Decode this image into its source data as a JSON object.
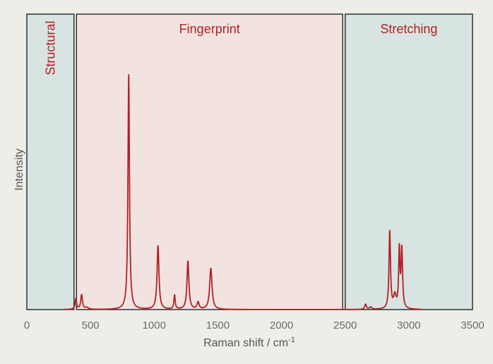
{
  "chart_data": {
    "type": "line",
    "xlabel": "Raman shift / cm",
    "xlabel_superscript": "-1",
    "ylabel": "Intensity",
    "xlim": [
      0,
      3500
    ],
    "ylim": [
      0,
      1.0
    ],
    "x_ticks": [
      0,
      500,
      1000,
      1500,
      2000,
      2500,
      3000,
      3500
    ],
    "y_ticks_shown": false,
    "grid": false,
    "colors": {
      "line": "#b41f24",
      "label": "#b41f24",
      "structural_fill": "#d8e4e1",
      "fingerprint_fill": "#f2e3e0",
      "stretching_fill": "#d8e4e1",
      "frame": "#1a2a2a",
      "background": "#efede8"
    },
    "regions": [
      {
        "label": "Structural",
        "x_start": 0,
        "x_end": 370,
        "label_orientation": "vertical"
      },
      {
        "label": "Fingerprint",
        "x_start": 390,
        "x_end": 2480,
        "label_orientation": "horizontal"
      },
      {
        "label": "Stretching",
        "x_start": 2500,
        "x_end": 3500,
        "label_orientation": "horizontal"
      }
    ],
    "series": [
      {
        "baseline_range": [
          290,
          3100
        ],
        "peaks": [
          {
            "x": 385,
            "y": 0.045,
            "width": 7
          },
          {
            "x": 430,
            "y": 0.062,
            "width": 8
          },
          {
            "x": 470,
            "y": 0.008,
            "width": 15
          },
          {
            "x": 800,
            "y": 1.0,
            "width": 7
          },
          {
            "x": 1030,
            "y": 0.27,
            "width": 9
          },
          {
            "x": 1160,
            "y": 0.06,
            "width": 6
          },
          {
            "x": 1265,
            "y": 0.205,
            "width": 9
          },
          {
            "x": 1345,
            "y": 0.03,
            "width": 9
          },
          {
            "x": 1445,
            "y": 0.175,
            "width": 11
          },
          {
            "x": 2660,
            "y": 0.022,
            "width": 8
          },
          {
            "x": 2700,
            "y": 0.01,
            "width": 10
          },
          {
            "x": 2850,
            "y": 0.33,
            "width": 7
          },
          {
            "x": 2890,
            "y": 0.055,
            "width": 12
          },
          {
            "x": 2925,
            "y": 0.245,
            "width": 6
          },
          {
            "x": 2945,
            "y": 0.25,
            "width": 7
          }
        ]
      }
    ]
  }
}
